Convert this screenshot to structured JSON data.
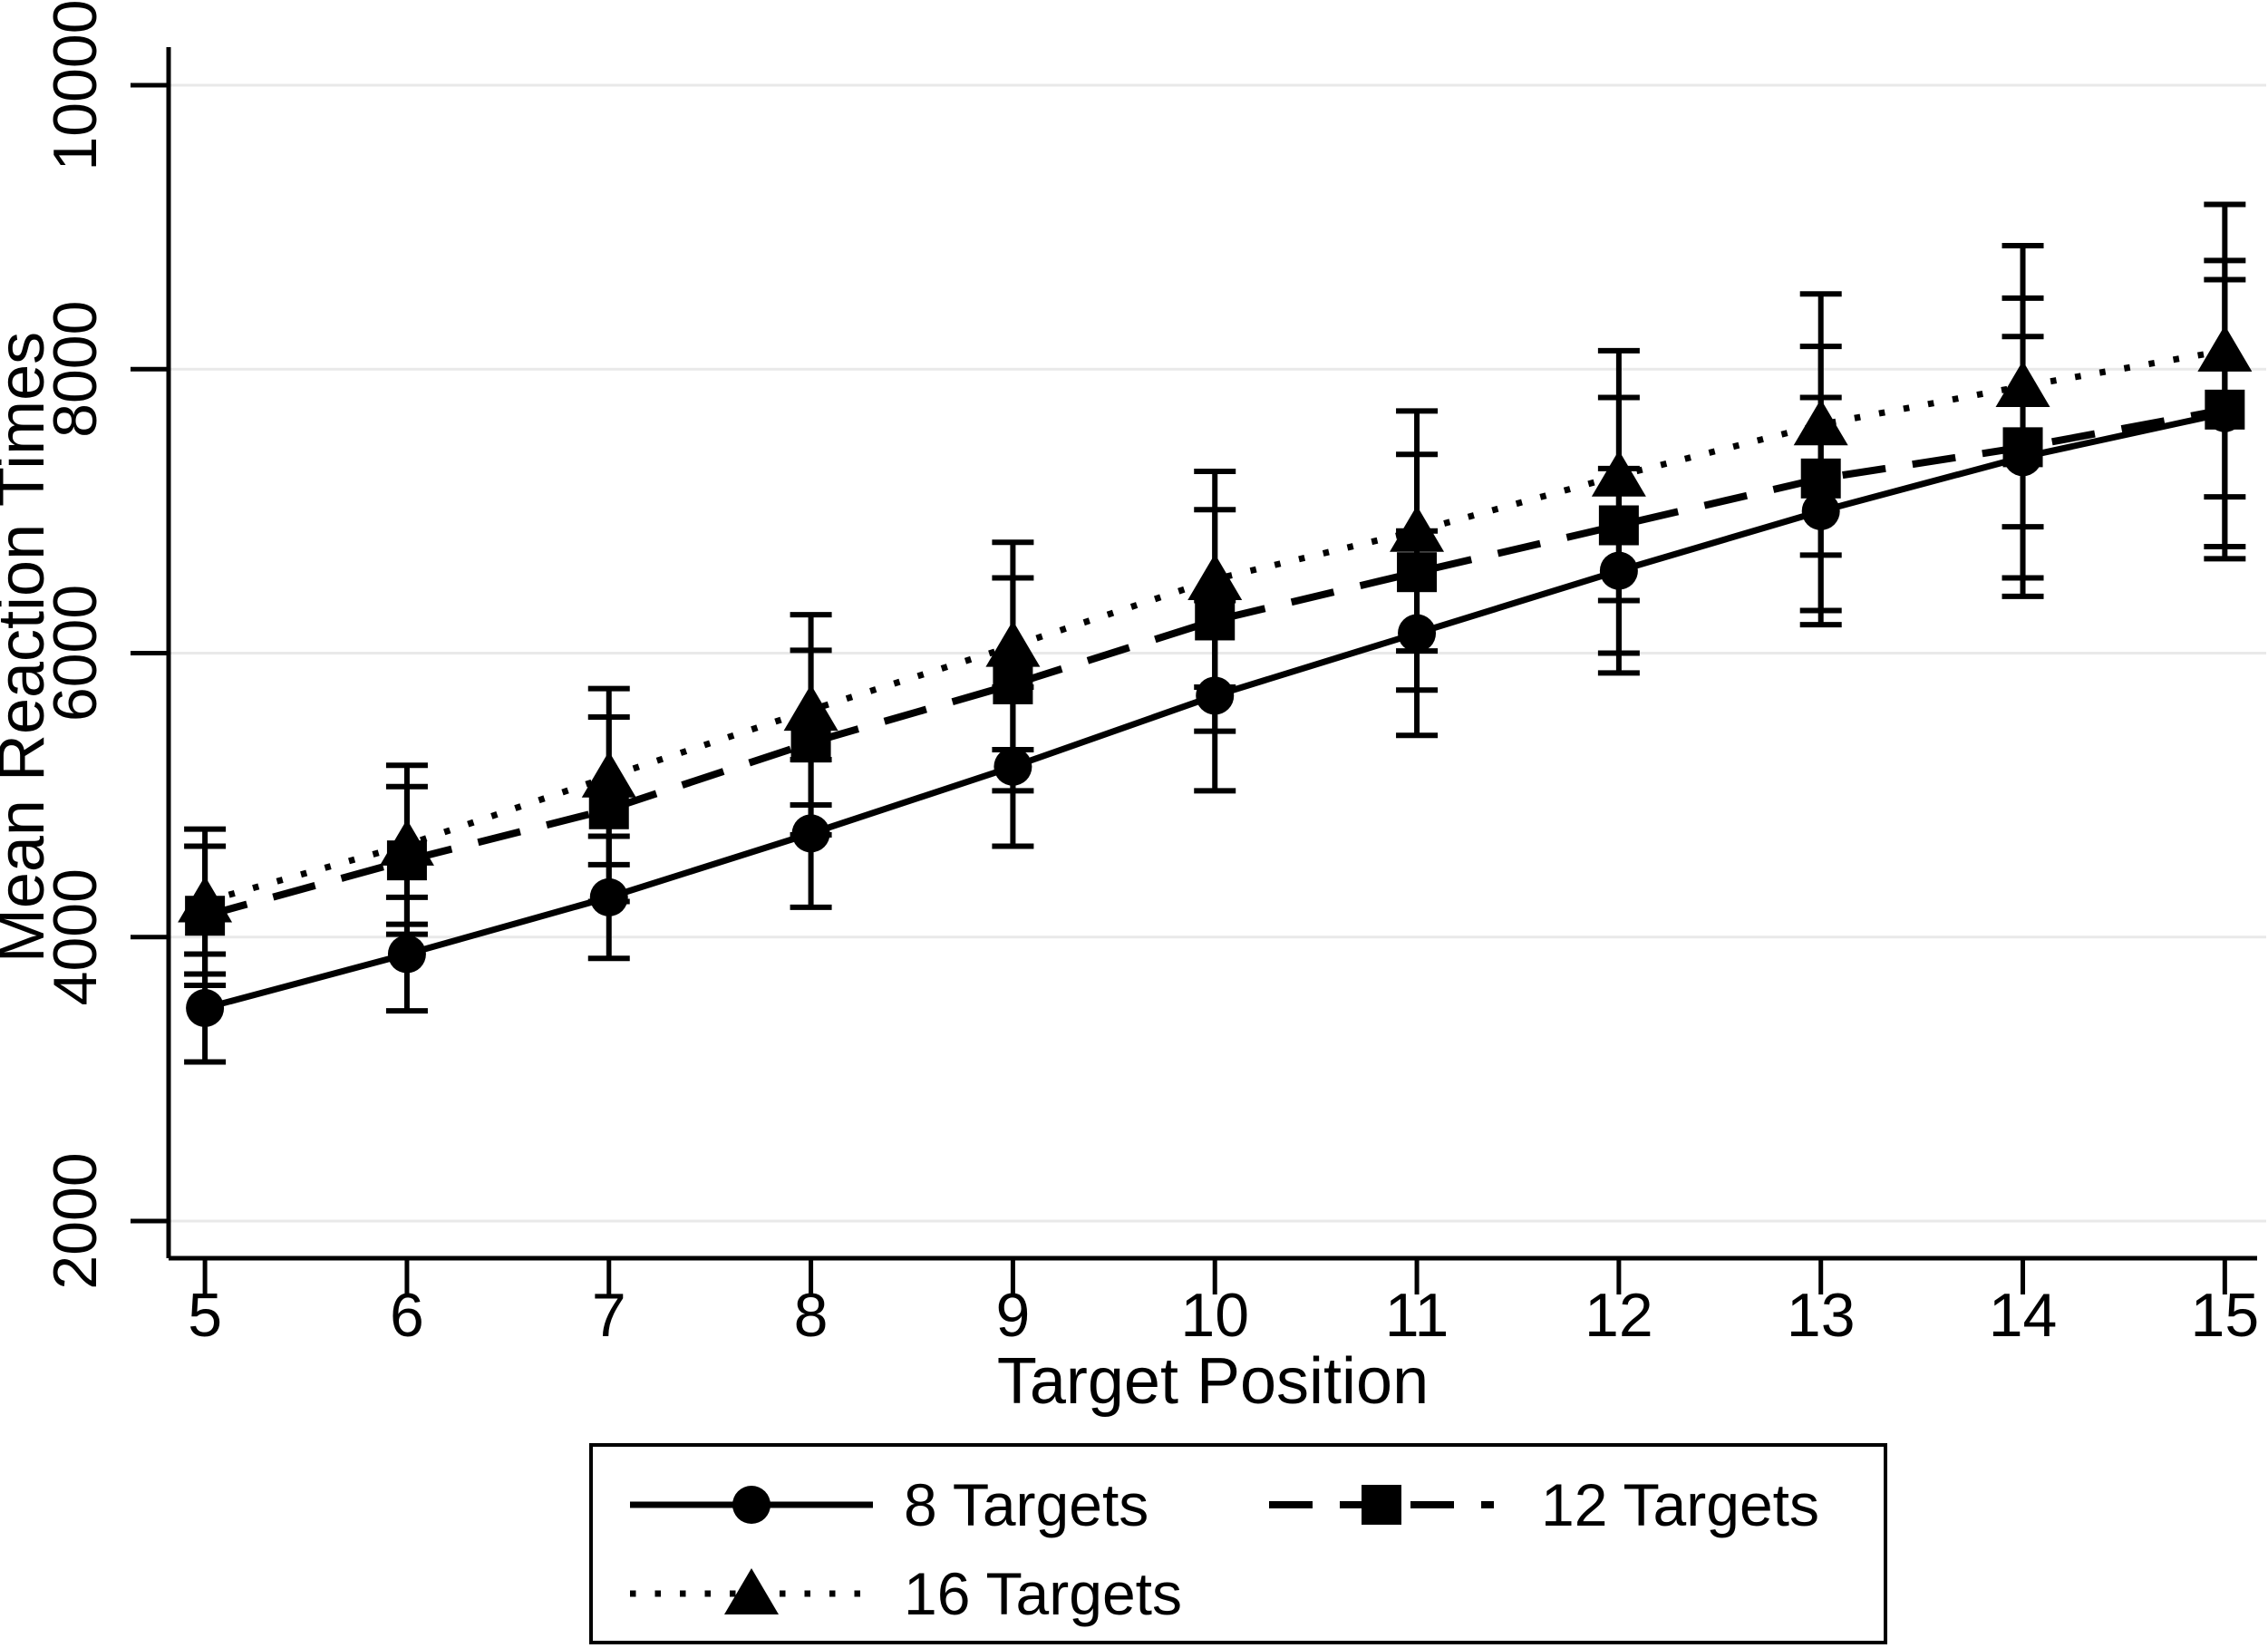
{
  "figure": {
    "background_color": "#ffffff",
    "foreground_color": "#000000",
    "gridline_color": "#e9e9e9"
  },
  "chart_data": {
    "type": "line",
    "title": "",
    "xlabel": "Target Position",
    "ylabel": "Mean Reaction Times",
    "x": [
      5,
      6,
      7,
      8,
      9,
      10,
      11,
      12,
      13,
      14,
      15
    ],
    "xticks": [
      "5",
      "6",
      "7",
      "8",
      "9",
      "10",
      "11",
      "12",
      "13",
      "14",
      "15"
    ],
    "yticks": [
      "2000",
      "4000",
      "6000",
      "8000",
      "10000"
    ],
    "ytick_values": [
      2000,
      4000,
      6000,
      8000,
      10000
    ],
    "xlim": [
      4.82,
      15.16
    ],
    "ylim": [
      1738,
      10268
    ],
    "grid": "horizontal-only",
    "error_bars": true,
    "legend_position": "bottom-center",
    "series": [
      {
        "name": "8 Targets",
        "marker": "circle",
        "line_style": "solid",
        "color": "#000000",
        "values": [
          3500,
          3880,
          4280,
          4730,
          5200,
          5700,
          6140,
          6580,
          7000,
          7380,
          7690
        ],
        "errors": [
          380,
          400,
          430,
          520,
          560,
          670,
          720,
          720,
          800,
          850,
          940
        ]
      },
      {
        "name": "12 Targets",
        "marker": "square",
        "line_style": "dashed",
        "color": "#000000",
        "values": [
          4150,
          4540,
          4900,
          5370,
          5780,
          6230,
          6570,
          6900,
          7230,
          7450,
          7715
        ],
        "errors": [
          490,
          520,
          650,
          650,
          750,
          780,
          830,
          900,
          930,
          1050,
          1050
        ]
      },
      {
        "name": "16 Targets",
        "marker": "triangle",
        "line_style": "dotted",
        "color": "#000000",
        "values": [
          4250,
          4650,
          5130,
          5600,
          6050,
          6520,
          6860,
          7250,
          7610,
          7880,
          8130
        ],
        "errors": [
          510,
          560,
          620,
          670,
          730,
          760,
          845,
          880,
          920,
          990,
          1030
        ]
      }
    ]
  }
}
